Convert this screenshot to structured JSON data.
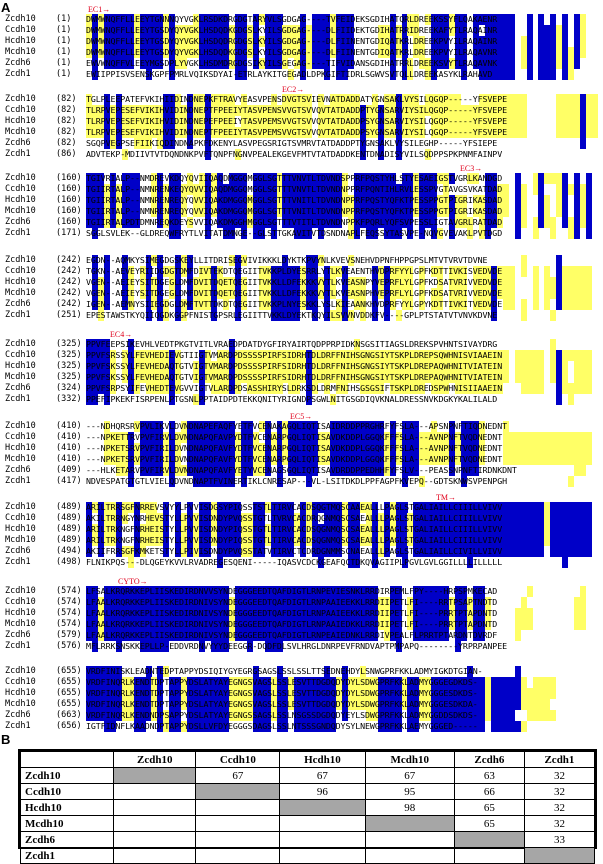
{
  "figure": {
    "panel_a_label": "A",
    "panel_b_label": "B",
    "domain_labels": [
      "EC1→",
      "EC2→",
      "EC3→",
      "EC4→",
      "EC5→",
      "TM→",
      "CYTO→"
    ],
    "alignment_blocks": [
      {
        "rows": [
          {
            "name": "Zcdh10",
            "num": "(1)",
            "seq": "DWMWNQFFLLEEYTGNNNQYVGKLRSDKDRGDGTARYVLSGDGAG----TVFEIDEKSGDIHATQRLDREEKSSYFLQAKAENR"
          },
          {
            "name": "Ccdh10",
            "num": "(1)",
            "seq": "DWMWNQFFLLEEYTGSDYQYVGKLHSDQDKGDGSLKYILSGDGAG----DLFIIDEKTGDIHATRRIDREEKAFYTLRAQAINR"
          },
          {
            "name": "Hcdh10",
            "num": "(1)",
            "seq": "DWMWNQFFLLEEYTGSDYQYVGKLHSDQDRGDGSLKYILSGDGAG----DLFIINENTGDIQATKRLDREEKPVYILRAQAINR"
          },
          {
            "name": "Mcdh10",
            "num": "(1)",
            "seq": "DWMWNQFFLLEEYTGSDYQYVGKLHSDQDKGDGSLKYILSGDGAG----DLFIINENTGDIQATKRLDREEKPVYILRAQAVNR"
          },
          {
            "name": "Zcdh6",
            "num": "(1)",
            "seq": "EWVWNQFFVLEEYMGSDPLYVGKLHSDMDRGDGSIKYILSGEGAG----TIFVIDANSGDIHATRRLDREEKSVYTLRAQAVNK"
          },
          {
            "name": "Zcdh1",
            "num": "(1)",
            "seq": "EWIIPPISVSENSKGPFPMRLVQIKSDYAI-ETRLAYKITGEGADLDPKGIFTIDRLSGWVSVTQLLDREEKASYKLRAHAVD"
          }
        ]
      },
      {
        "rows": [
          {
            "name": "Zcdh10",
            "num": "(82)",
            "seq": "TGLPLEEPATEFVKIHIIDINDNEPKFTRAVYEASVPENSDVGTSVIEVNATDADDATYGNSAKLVYSILQGQP-----YFSVEPE"
          },
          {
            "name": "Ccdh10",
            "num": "(82)",
            "seq": "TLRPVEPESEFVIKIHVIDINDNEPTFPEEIYTASVPENSVVGTSVVQVTATDADDPTYGNSARVIYSILQGQP-----YFSVEPE"
          },
          {
            "name": "Hcdh10",
            "num": "(82)",
            "seq": "TLRPVEPESEFVIKIHVIDINDNEPEFPEEIYTASVPEMSVVGTSVVQVTATDADDPSYGNSARVIYSILQGQP-----YFSVEPE"
          },
          {
            "name": "Mcdh10",
            "num": "(82)",
            "seq": "TLRPVEPESEFVIKIHVIDINDNEPTFPEEIYTASVPEMSVVGTSVVQVTATDADDPSYGNSARVIYSILQGQP-----YFSVEPE"
          },
          {
            "name": "Zcdh6",
            "num": "(82)",
            "seq": "SGQPVEGPSEFIIKIQDINDNAPKFDKENYLASVPEGSRIGTSVMRVTATDADDPTYGNSAKLVYSILEGHP-----YFSIEPE"
          },
          {
            "name": "Zcdh1",
            "num": "(86)",
            "seq": "ADVTEKP-MDIIVTVTDQNDNKPVFTQNPFNGNVPEALEKGEVFMTVTATDADDKENTDNADISYVILSQDPPSPKPNMFAINPV"
          }
        ]
      },
      {
        "rows": [
          {
            "name": "Zcdh10",
            "num": "(160)",
            "seq": "TGIVRIALP--NMDREVKDQYQVIIQAQDMGGQMGGLSGTTTVNVTLTDVNDSPPRFPQSTYHLSTYESAEIGSTVGRLKANDGD"
          },
          {
            "name": "Ccdh10",
            "num": "(160)",
            "seq": "TGIIRTALP--NMNRENKEQYQVVIQAQDMGGQMGGLSGTTTVNVTLTDVNDNPPRFPQNTIHLRVLESSPVGTAVGSVKATDAD"
          },
          {
            "name": "Hcdh10",
            "num": "(160)",
            "seq": "TGIIRTALP--NMNRENREQYQVVIQAKDMGGQMGGLSGTTTVNITLTDVNDNPPRFPQSTYQFKTPESSPPGTPIGRIKASDAD"
          },
          {
            "name": "Mcdh10",
            "num": "(160)",
            "seq": "TGIIRTALP--NMNRENREQYQVVIQAKDMGGQMGGLSGTTTVNITLTDVNDNPPRFPQSTYQFKTPESSPPGTPIGRIKASDAD"
          },
          {
            "name": "Zcdh6",
            "num": "(160)",
            "seq": "TGIIRTALPDTDMNREQKDEYSVVIQAKDMGGHMGGLSGTTTVTITLTDVNDNPPKFPQRLYQFSVPESSLIGTAVGRLRATDAD"
          },
          {
            "name": "Zcdh1",
            "num": "(171)",
            "seq": "SGGLSVLEK--GLDREQWFRYTLVITATDMNGE--GLSTTGKAVITVTDSNDNAPLFEQSSYTASVPE-NQVGVEVAKLPVTDGD"
          }
        ]
      },
      {
        "rows": [
          {
            "name": "Zcdh10",
            "num": "(242)",
            "seq": "EGDN--AQMKYSIMEGDGSKEYLLITDRISEGVIVIKKKLDYKTKPVYNLKVEVSNEHVDPNFHPPGPSLMTVTVRVTDVNE"
          },
          {
            "name": "Ccdh10",
            "num": "(242)",
            "seq": "TGKN--AEVEYRIIDGDGTDMFDIVTEKDTQEGIITVKKPLDYESRRLYTLKVEAENTHVDPRFYYLGPFKDTTIVKISVEDVDE"
          },
          {
            "name": "Hcdh10",
            "num": "(242)",
            "seq": "VGEN--AEIEYSITDGEGLDMFDVITDQETQEGIITVKKLLDFEKKKVYTLKVEASNPYVEPRFLYLGPFKDSATVRIVVEDVDE"
          },
          {
            "name": "Mcdh10",
            "num": "(242)",
            "seq": "VGEN--AEIEYSITDGEGLDMFDVITDQETQEGIITVKKLLDFEKKKVYTLKVEASNPHVEPRFLYLGPFKDSATVRIVVEDVDE"
          },
          {
            "name": "Zcdh6",
            "num": "(242)",
            "seq": "IGEN--AEMNYSIIEGDGLDMFTVTTDKDTQEGIITVKKPLNYESKKLYSLKIEAANKHVDPRFYYLGPYKDTTIVKITVEDVDE"
          },
          {
            "name": "Zcdh1",
            "num": "(251)",
            "seq": "EPESTAWSTKYQIIQGDKGGPFNISTGPSRLEGIITTVKKLDYEKTKQYILSVVNVDDKFV----GPLPTSTATVTVNVKDVNE"
          }
        ]
      },
      {
        "rows": [
          {
            "name": "Zcdh10",
            "num": "(325)",
            "seq": "PPVFEEPSIKEVHLVEDTPKGTVITLVRAEDPDATDYGFIRYAIRTQDPPRPIDKNSGSITIAGSLDREKSPVHNTSIVAYDRG"
          },
          {
            "name": "Ccdh10",
            "num": "(325)",
            "seq": "PPVFSRSSYLFEVHEDIEVGTIIGTVMARDPDSSSSPIRFSIDRHTDLDRFFNIHSGNGSIYTSKPLDREPSQWHNISVIAAEIN"
          },
          {
            "name": "Hcdh10",
            "num": "(325)",
            "seq": "PPVFSKSSYLFEVHEDAQTGTVIGTVMARDPDSSSSPIRFSIDRHTDLDRFFNIHSGNGSIYTSKPLDREPAQWHNITVIATEIN"
          },
          {
            "name": "Mcdh10",
            "num": "(325)",
            "seq": "PPVFSKSSYLFEVHEDAQTGTVIGTVMARDPDSSSSPIRFSIDRHTDLDRFFNIHSGNGSIYTSKPLDREPAQWHNITVIATEIN"
          },
          {
            "name": "Zcdh6",
            "num": "(324)",
            "seq": "PPVFSRPSYIFEVHEDTEVGVVIGTVLARDPDSASSHIRYSLDRKSDLDRMFNIHSGSGSIFTSKPLDREDSPWHNISIIAAEIN"
          },
          {
            "name": "Zcdh1",
            "num": "(332)",
            "seq": "PPEFIPKEKFISRPENLPTGSNLPPTAIDPDTEKKQNITYRIGNDPSGWLNITGSGDIQVKNALDRESSNVKDGKYKALILALD"
          }
        ]
      },
      {
        "rows": [
          {
            "name": "Zcdh10",
            "num": "(410)",
            "seq": "---NDHQRSRVPVLIKVLDVNDNAPEFAQFYETFVCENAKAGQLIQTISAIDRDDPPRGHRFYFSLA---APSNPNFTIQDNEDNT"
          },
          {
            "name": "Ccdh10",
            "num": "(410)",
            "seq": "---NPKETTRVPVFIRVLDVNDNAPQFAVPYDTFVCENARPGQLIQTISAVDKDDPLGGQKFFFSLA---AVNPNFTVQDNEDNT"
          },
          {
            "name": "Hcdh10",
            "num": "(410)",
            "seq": "---NPKETSRVPVFIRILDVNDNAPQFAVFYDTFVCENARPGQLIQTISAVDKDDPLGGQKFFFSLA---AVNPNFTVQDNEDNT"
          },
          {
            "name": "Mcdh10",
            "num": "(410)",
            "seq": "---NPKETSRVPVFIRILDVNDNAPQFAVFYDTFVCENARPGQLIQTISAVDKDDPLGGQKFFFSLA---AVNPNFTVQDNEDNT"
          },
          {
            "name": "Zcdh6",
            "num": "(409)",
            "seq": "---HLKETARVPVFIRVLDVNDNAPQFAVFYETYVCENAGSGQLIQTISAVDRDDPPEDHHFYFSLV---PEASSNPNFTIRDNKDNT"
          },
          {
            "name": "Zcdh1",
            "num": "(417)",
            "seq": "NDVESPATGTGTLVIELQDVNDNAPTFVINERTIKLCNRESAP---VL-LSITDKDLPPFAGPFKVEPQ--GDTSKNWSVPENPGH"
          }
        ]
      },
      {
        "rows": [
          {
            "name": "Zcdh10",
            "num": "(489)",
            "seq": "ARILTRRSGFNRREVSVYYLPVVISDGSYPIQSSTSTLTIRVCACDSQGTMQSCAAEALLLPAGLSTGALIAILLCIIILLVIVV"
          },
          {
            "name": "Ccdh10",
            "num": "(489)",
            "seq": "AKILTRRNGYNRHEVSTYLLPVVISDNDYPVQSSTGTLTVRVCACDRQGNMQSCSAEALLLPAGLSTGALIAILLCIIILLVIVV"
          },
          {
            "name": "Hcdh10",
            "num": "(489)",
            "seq": "ARILTRKNGFNRHEISTYLLPVVISDNDYPIQSSTGTLTIRVCACDSQGNMQSCSAEALLLPAGLSTGALIAILLCIIILLVIVV"
          },
          {
            "name": "Mcdh10",
            "num": "(489)",
            "seq": "ARILTRKNGFNRHEISTYLLPVVISDNDYPIQSSTGTLTIRVCACDSQGNMQSCSAEALLLPAGLSTGALIAILLCIIILLVIVV"
          },
          {
            "name": "Zcdh6",
            "num": "(494)",
            "seq": "AKIIFRRSGFKMKETSTYLLPIVISDNDYPVQSSTATVTIRVCTCDRDGNMMSCNAEALLLPAGLSTGALIAILLCIVILLVIVV"
          },
          {
            "name": "Zcdh1",
            "num": "(498)",
            "seq": "FLNIKPQS---DLQGEYKVVLRVADREGESQENI-----IQASVCDCKGEAFQCTDKQVAGIIPLPGVLGVLGGILLLLILLLLL"
          }
        ]
      },
      {
        "rows": [
          {
            "name": "Zcdh10",
            "num": "(574)",
            "seq": "LFSALKRQRKKEPLIISKEDIRDNVVSYNDEGGGEEDTQAFDIGTLRNPEVIESNKLRRDIRPEMLFPY----HRPSPMKECAD"
          },
          {
            "name": "Ccdh10",
            "num": "(574)",
            "seq": "LFAALKRQRKKEPLIISKEDIRDNIVSYNDEGGGEEDTQAFDIGTLRNPAAIEEKKLRRDIIPETLFI----RRTPSAPTNDTD"
          },
          {
            "name": "Hcdh10",
            "num": "(574)",
            "seq": "LFAALKRQRKKEPLIISKEDIRDNIVSYNDEGGGEEDTQAFDIGTLRNPAAIEEKKLRRDIIPETLFI----PRRTPTAPDNTD"
          },
          {
            "name": "Mcdh10",
            "num": "(574)",
            "seq": "LFAALKRQRKKEPLIISKEDIRDNIVSYNDEGGGEEDTQAFDIGTLRNPAAIEDKKLRRDIIPETLFI----PRRTPTAPDNTD"
          },
          {
            "name": "Zcdh6",
            "num": "(579)",
            "seq": "LFAALKRQRKKEPLIISKEDIRDNIVSYNDEGGGEEDTQAFDIGTLRNPEAIEDNKLRRDIVPEALFLPRRTPTARDNTDVRDF"
          },
          {
            "name": "Zcdh1",
            "num": "(576)",
            "seq": "MFLRRKSNSKKEPLLP-EDDVRDNVYYYDEEGGR-DQDFDLSVLHRGLDNRPEVFRNDVAPTPMPAPQ--------YRPRPANPEE"
          }
        ]
      },
      {
        "rows": [
          {
            "name": "Zcdh10",
            "num": "(655)",
            "seq": "VRDFINISKLEADNTEDPTAPPYDSIQIYGYEGRGSAGSLSSLSSLTTSEDNEHDYLSNWGPRFKKLADMYIGKDTGIAN-"
          },
          {
            "name": "Ccdh10",
            "num": "(655)",
            "seq": "VRDFINQRLKENDTDPTAPPYDSLATYAYEGNGSVAGSLSSLESVTTDGDQDYDYLSDWGPRFKKLADMYGGGEGDKDS-"
          },
          {
            "name": "Hcdh10",
            "num": "(655)",
            "seq": "VRDFINQRLKENDTDPTAPPYDSLATYAYEGNGSVAGSLSSLESVTTDGDQDYDYLSDWGPRFKKLADMYGGGESDKDS-"
          },
          {
            "name": "Mcdh10",
            "num": "(655)",
            "seq": "VRDFINQRLKENDTDPTAPPYDSLATYAYEGNGSVAGSLSSLESVTTDGDQDYDYLSDWGPRFKKLADMYGGGESDKDA-"
          },
          {
            "name": "Zcdh6",
            "num": "(663)",
            "seq": "VRDFINQRLKENDNDPSAPPYDSLATYAYEGNGSSAGSLSSLNSGSSDGDQDYEYLSDWGPRFKKLADMYGGDDSDKDS-"
          },
          {
            "name": "Zcdh1",
            "num": "(656)",
            "seq": "IGTFIDNFLKAADNDPTAPPYDSLLVFDYEGGGSDAGSLSSLNTSSSGNDQDYSYLNEWGPRFKKLAEMYGGGED-----"
          }
        ]
      }
    ],
    "identity_table": {
      "columns": [
        "Zcdh10",
        "Ccdh10",
        "Hcdh10",
        "Mcdh10",
        "Zcdh6",
        "Zcdh1"
      ],
      "rows": [
        {
          "label": "Zcdh10",
          "cells": [
            "",
            "67",
            "67",
            "67",
            "63",
            "32"
          ]
        },
        {
          "label": "Ccdh10",
          "cells": [
            "",
            "",
            "96",
            "95",
            "66",
            "32"
          ]
        },
        {
          "label": "Hcdh10",
          "cells": [
            "",
            "",
            "",
            "98",
            "65",
            "32"
          ]
        },
        {
          "label": "Mcdh10",
          "cells": [
            "",
            "",
            "",
            "",
            "65",
            "32"
          ]
        },
        {
          "label": "Zcdh6",
          "cells": [
            "",
            "",
            "",
            "",
            "",
            "33"
          ]
        },
        {
          "label": "Zcdh1",
          "cells": [
            "",
            "",
            "",
            "",
            "",
            ""
          ]
        }
      ],
      "diagonal_color": "#a6a6a6"
    },
    "colors": {
      "identical_bg": "#0000c8",
      "identical_fg": "#ffffff",
      "similar_bg": "#ffff66",
      "domain_label": "#e0001b"
    }
  }
}
